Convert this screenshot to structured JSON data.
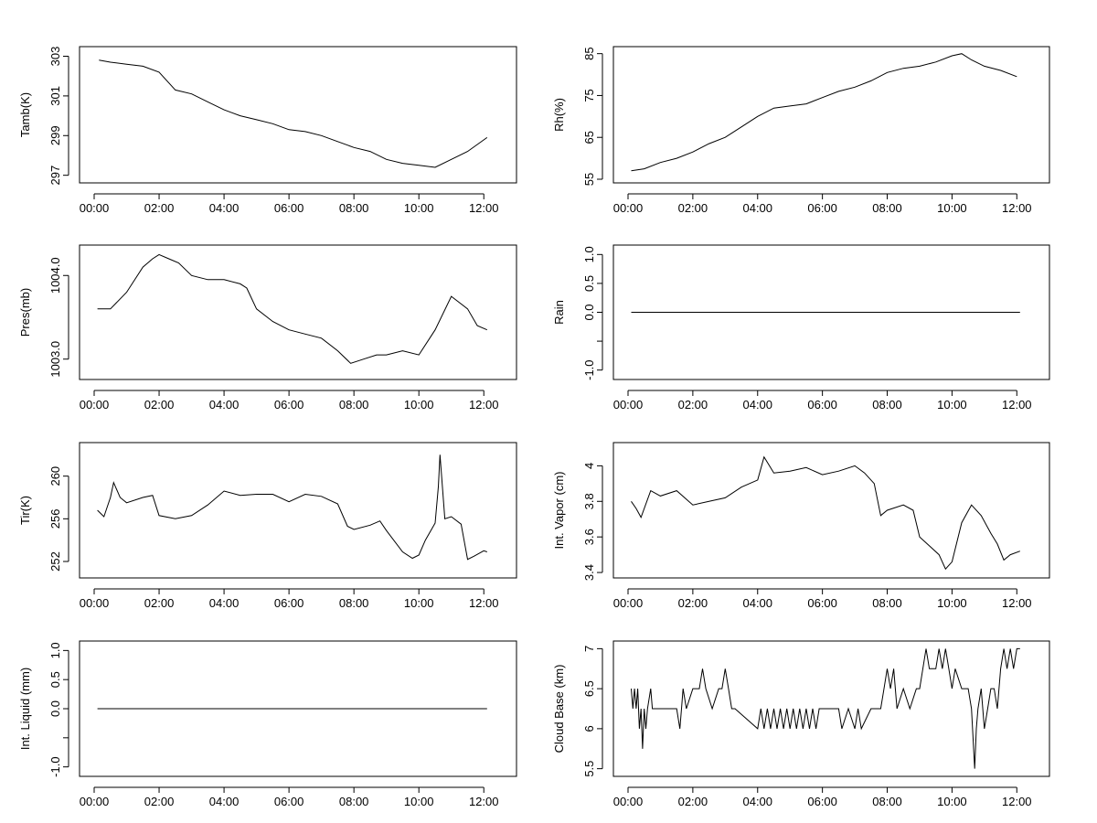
{
  "chart_data": [
    {
      "type": "line",
      "ylabel": "Tamb(K)",
      "xticks": [
        "00:00",
        "02:00",
        "04:00",
        "06:00",
        "08:00",
        "10:00",
        "12:00"
      ],
      "yticks": [
        297,
        299,
        301,
        303
      ],
      "ylim": [
        296.8,
        303.3
      ],
      "xlim": [
        0,
        12.5
      ],
      "series": [
        {
          "x": [
            0.15,
            0.5,
            1.0,
            1.5,
            2.0,
            2.5,
            3.0,
            3.5,
            4.0,
            4.5,
            5.0,
            5.5,
            6.0,
            6.5,
            7.0,
            7.5,
            8.0,
            8.5,
            9.0,
            9.5,
            10.0,
            10.5,
            11.0,
            11.5,
            12.1
          ],
          "y": [
            302.8,
            302.7,
            302.6,
            302.5,
            302.2,
            301.3,
            301.1,
            300.7,
            300.3,
            300.0,
            299.8,
            299.6,
            299.3,
            299.2,
            299.0,
            298.7,
            298.4,
            298.2,
            297.8,
            297.6,
            297.5,
            297.4,
            297.8,
            298.2,
            298.9
          ]
        }
      ]
    },
    {
      "type": "line",
      "ylabel": "Rh(%)",
      "xticks": [
        "00:00",
        "02:00",
        "04:00",
        "06:00",
        "08:00",
        "10:00",
        "12:00"
      ],
      "yticks": [
        55,
        65,
        75,
        85
      ],
      "ylim": [
        55,
        85.8
      ],
      "xlim": [
        0,
        12.5
      ],
      "series": [
        {
          "x": [
            0.1,
            0.5,
            1.0,
            1.5,
            2.0,
            2.5,
            3.0,
            3.5,
            4.0,
            4.5,
            5.0,
            5.5,
            6.0,
            6.5,
            7.0,
            7.5,
            8.0,
            8.5,
            9.0,
            9.5,
            10.0,
            10.3,
            10.6,
            11.0,
            11.5,
            12.0
          ],
          "y": [
            57,
            57.5,
            59,
            60,
            61.5,
            63.5,
            65,
            67.5,
            70,
            72,
            72.5,
            73,
            74.5,
            76,
            77,
            78.5,
            80.5,
            81.5,
            82,
            83,
            84.5,
            85,
            83.5,
            82,
            81,
            79.5
          ]
        }
      ]
    },
    {
      "type": "line",
      "ylabel": "Pres(mb)",
      "xticks": [
        "00:00",
        "02:00",
        "04:00",
        "06:00",
        "08:00",
        "10:00",
        "12:00"
      ],
      "yticks": [
        1003.0,
        1004.0
      ],
      "ytick_labels": [
        "1003.0",
        "1004.0"
      ],
      "ylim": [
        1002.8,
        1004.32
      ],
      "xlim": [
        0,
        12.5
      ],
      "series": [
        {
          "x": [
            0.1,
            0.5,
            1.0,
            1.5,
            1.8,
            2.0,
            2.3,
            2.6,
            3.0,
            3.5,
            4.0,
            4.5,
            4.7,
            5.0,
            5.5,
            6.0,
            6.5,
            7.0,
            7.5,
            7.9,
            8.3,
            8.7,
            9.0,
            9.5,
            10.0,
            10.5,
            11.0,
            11.5,
            11.8,
            12.1
          ],
          "y": [
            1003.6,
            1003.6,
            1003.8,
            1004.1,
            1004.2,
            1004.25,
            1004.2,
            1004.15,
            1004.0,
            1003.95,
            1003.95,
            1003.9,
            1003.85,
            1003.6,
            1003.45,
            1003.35,
            1003.3,
            1003.25,
            1003.1,
            1002.95,
            1003.0,
            1003.05,
            1003.05,
            1003.1,
            1003.05,
            1003.35,
            1003.75,
            1003.6,
            1003.4,
            1003.35
          ]
        }
      ]
    },
    {
      "type": "line",
      "ylabel": "Rain",
      "xticks": [
        "00:00",
        "02:00",
        "04:00",
        "06:00",
        "08:00",
        "10:00",
        "12:00"
      ],
      "yticks": [
        -1.0,
        -0.5,
        0.0,
        0.5,
        1.0
      ],
      "ytick_labels": [
        "-1.0",
        "",
        "0.0",
        "0.5",
        "1.0"
      ],
      "ylim": [
        -1.1,
        1.1
      ],
      "xlim": [
        0,
        12.5
      ],
      "series": [
        {
          "x": [
            0.1,
            12.1
          ],
          "y": [
            0,
            0
          ]
        }
      ]
    },
    {
      "type": "line",
      "ylabel": "Tir(K)",
      "xticks": [
        "00:00",
        "02:00",
        "04:00",
        "06:00",
        "08:00",
        "10:00",
        "12:00"
      ],
      "yticks": [
        252,
        256,
        260
      ],
      "ylim": [
        250.8,
        262.8
      ],
      "xlim": [
        0,
        12.5
      ],
      "series": [
        {
          "x": [
            0.1,
            0.3,
            0.5,
            0.6,
            0.8,
            1.0,
            1.5,
            1.8,
            2.0,
            2.5,
            3.0,
            3.5,
            4.0,
            4.5,
            5.0,
            5.5,
            6.0,
            6.5,
            7.0,
            7.5,
            7.8,
            8.0,
            8.5,
            8.8,
            9.0,
            9.5,
            9.8,
            10.0,
            10.2,
            10.5,
            10.6,
            10.65,
            10.8,
            11.0,
            11.3,
            11.5,
            11.7,
            12.0,
            12.1
          ],
          "y": [
            256.8,
            256.2,
            258,
            259.4,
            258,
            257.5,
            258,
            258.2,
            256.3,
            256,
            256.3,
            257.3,
            258.6,
            258.2,
            258.3,
            258.3,
            257.6,
            258.3,
            258.1,
            257.4,
            255.3,
            255,
            255.4,
            255.8,
            254.9,
            252.9,
            252.3,
            252.6,
            254,
            255.6,
            259,
            262,
            256,
            256.2,
            255.5,
            252.2,
            252.5,
            253,
            252.9
          ]
        }
      ]
    },
    {
      "type": "line",
      "ylabel": "Int. Vapor (cm)",
      "xticks": [
        "00:00",
        "02:00",
        "04:00",
        "06:00",
        "08:00",
        "10:00",
        "12:00"
      ],
      "yticks": [
        3.4,
        3.6,
        3.8,
        4.0
      ],
      "ylim": [
        3.39,
        4.11
      ],
      "xlim": [
        0,
        12.5
      ],
      "series": [
        {
          "x": [
            0.1,
            0.25,
            0.4,
            0.7,
            1.0,
            1.5,
            2.0,
            2.5,
            3.0,
            3.5,
            4.0,
            4.2,
            4.5,
            5.0,
            5.5,
            6.0,
            6.5,
            7.0,
            7.3,
            7.6,
            7.8,
            8.0,
            8.5,
            8.8,
            9.0,
            9.3,
            9.6,
            9.8,
            10.0,
            10.3,
            10.6,
            10.9,
            11.2,
            11.4,
            11.6,
            11.8,
            12.1
          ],
          "y": [
            3.8,
            3.76,
            3.71,
            3.86,
            3.83,
            3.86,
            3.78,
            3.8,
            3.82,
            3.88,
            3.92,
            4.05,
            3.96,
            3.97,
            3.99,
            3.95,
            3.97,
            4.0,
            3.96,
            3.9,
            3.72,
            3.75,
            3.78,
            3.75,
            3.6,
            3.55,
            3.5,
            3.42,
            3.46,
            3.68,
            3.78,
            3.72,
            3.62,
            3.56,
            3.47,
            3.5,
            3.52
          ]
        }
      ]
    },
    {
      "type": "line",
      "ylabel": "Int. Liquid (mm)",
      "xticks": [
        "00:00",
        "02:00",
        "04:00",
        "06:00",
        "08:00",
        "10:00",
        "12:00"
      ],
      "yticks": [
        -1.0,
        -0.5,
        0.0,
        0.5,
        1.0
      ],
      "ytick_labels": [
        "-1.0",
        "",
        "0.0",
        "0.5",
        "1.0"
      ],
      "ylim": [
        -1.1,
        1.1
      ],
      "xlim": [
        0,
        12.5
      ],
      "series": [
        {
          "x": [
            0.1,
            12.1
          ],
          "y": [
            0,
            0
          ]
        }
      ]
    },
    {
      "type": "line",
      "ylabel": "Cloud Base (km)",
      "xticks": [
        "00:00",
        "02:00",
        "04:00",
        "06:00",
        "08:00",
        "10:00",
        "12:00"
      ],
      "yticks": [
        5.5,
        6.0,
        6.5,
        7.0
      ],
      "ylim": [
        5.45,
        7.05
      ],
      "xlim": [
        0,
        12.5
      ],
      "series": [
        {
          "x": [
            0.1,
            0.15,
            0.2,
            0.25,
            0.3,
            0.35,
            0.4,
            0.45,
            0.5,
            0.55,
            0.6,
            0.7,
            0.75,
            0.8,
            1.0,
            1.5,
            1.6,
            1.65,
            1.7,
            1.8,
            2.0,
            2.2,
            2.3,
            2.4,
            2.6,
            2.8,
            2.9,
            3.0,
            3.1,
            3.2,
            3.3,
            4.0,
            4.1,
            4.2,
            4.3,
            4.4,
            4.5,
            4.6,
            4.7,
            4.8,
            4.9,
            5.0,
            5.1,
            5.2,
            5.3,
            5.4,
            5.5,
            5.6,
            5.7,
            5.8,
            5.9,
            6.0,
            6.1,
            6.2,
            6.3,
            6.5,
            6.6,
            6.8,
            7.0,
            7.1,
            7.2,
            7.5,
            7.8,
            7.9,
            8.0,
            8.1,
            8.2,
            8.3,
            8.5,
            8.7,
            8.9,
            9.0,
            9.1,
            9.2,
            9.3,
            9.5,
            9.6,
            9.7,
            9.8,
            9.9,
            10.0,
            10.1,
            10.3,
            10.5,
            10.6,
            10.7,
            10.75,
            10.8,
            10.9,
            11.0,
            11.1,
            11.2,
            11.3,
            11.4,
            11.5,
            11.6,
            11.7,
            11.8,
            11.9,
            12.0,
            12.1
          ],
          "y": [
            6.5,
            6.25,
            6.5,
            6.25,
            6.5,
            6.0,
            6.25,
            5.75,
            6.25,
            6.0,
            6.25,
            6.5,
            6.25,
            6.25,
            6.25,
            6.25,
            6.0,
            6.25,
            6.5,
            6.25,
            6.5,
            6.5,
            6.75,
            6.5,
            6.25,
            6.5,
            6.5,
            6.75,
            6.5,
            6.25,
            6.25,
            6.0,
            6.25,
            6.0,
            6.25,
            6.0,
            6.25,
            6.0,
            6.25,
            6.0,
            6.25,
            6.0,
            6.25,
            6.0,
            6.25,
            6.0,
            6.25,
            6.0,
            6.25,
            6.0,
            6.25,
            6.25,
            6.25,
            6.25,
            6.25,
            6.25,
            6.0,
            6.25,
            6.0,
            6.25,
            6.0,
            6.25,
            6.25,
            6.5,
            6.75,
            6.5,
            6.75,
            6.25,
            6.5,
            6.25,
            6.5,
            6.5,
            6.75,
            7.0,
            6.75,
            6.75,
            7.0,
            6.75,
            7.0,
            6.75,
            6.5,
            6.75,
            6.5,
            6.5,
            6.25,
            5.5,
            6.0,
            6.25,
            6.5,
            6.0,
            6.25,
            6.5,
            6.5,
            6.25,
            6.75,
            7.0,
            6.75,
            7.0,
            6.75,
            7.0,
            7.0
          ]
        }
      ]
    }
  ]
}
